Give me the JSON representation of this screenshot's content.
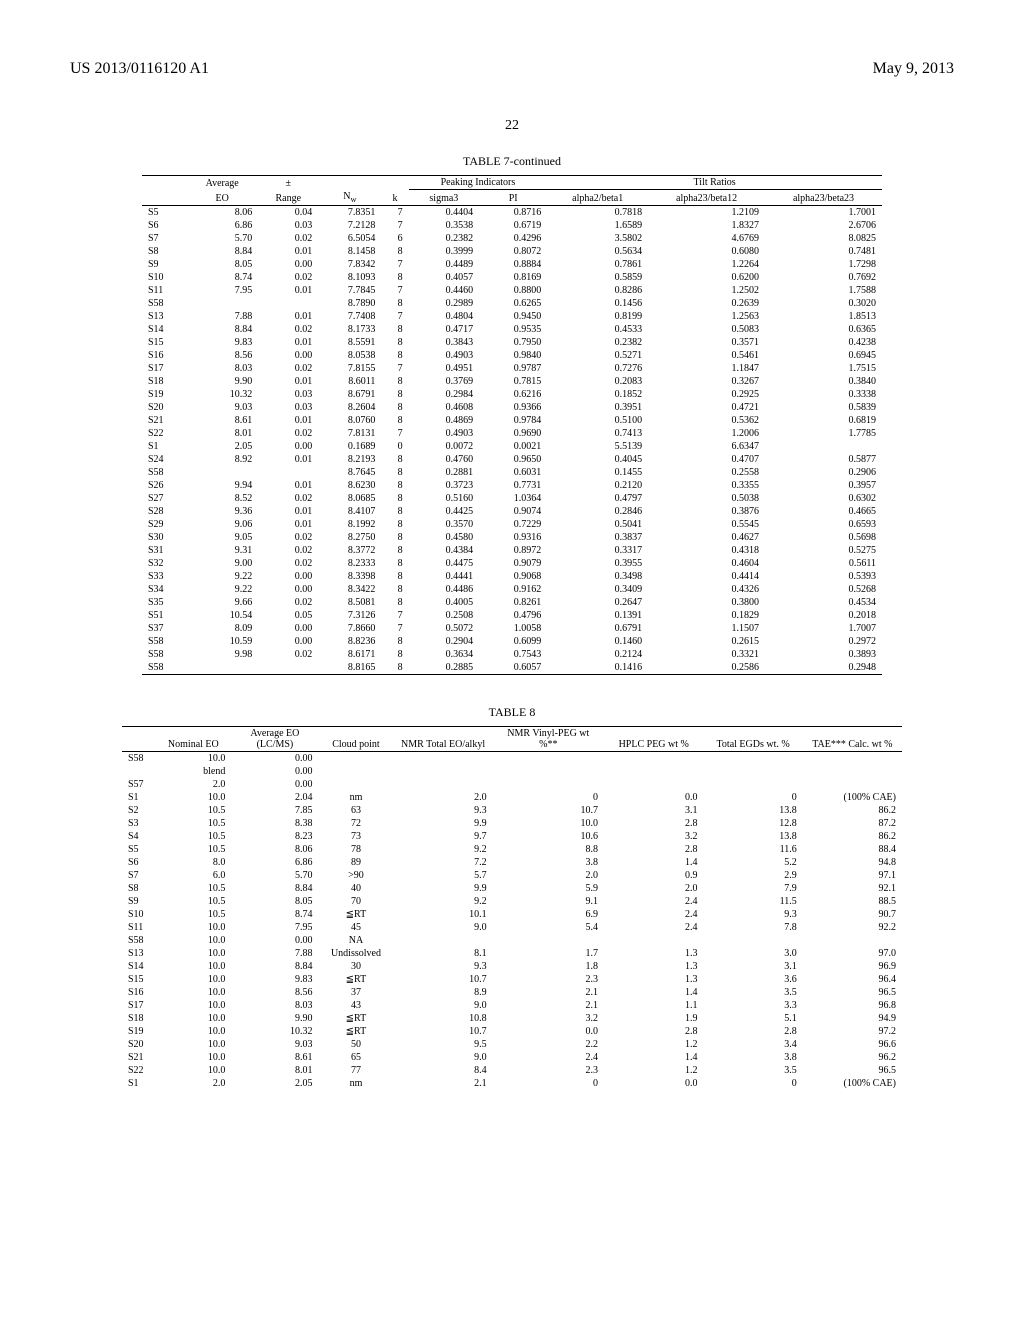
{
  "header": {
    "docnum": "US 2013/0116120 A1",
    "date": "May 9, 2013",
    "page": "22"
  },
  "table7": {
    "title": "TABLE 7-continued",
    "group_headers": {
      "peaking": "Peaking Indicators",
      "tilt": "Tilt Ratios"
    },
    "columns": {
      "avg_eo_top": "Average",
      "avg_eo": "EO",
      "pm": "±",
      "range": "Range",
      "nw": "N",
      "nw_sub": "w",
      "k": "k",
      "sigma3": "sigma3",
      "pi": "PI",
      "a2b1": "alpha2/beta1",
      "a23b12": "alpha23/beta12",
      "a23b23": "alpha23/beta23"
    },
    "rows": [
      {
        "id": "S5",
        "eo": "8.06",
        "range": "0.04",
        "nw": "7.8351",
        "k": "7",
        "sigma3": "0.4404",
        "pi": "0.8716",
        "a2b1": "0.7818",
        "a23b12": "1.2109",
        "a23b23": "1.7001"
      },
      {
        "id": "S6",
        "eo": "6.86",
        "range": "0.03",
        "nw": "7.2128",
        "k": "7",
        "sigma3": "0.3538",
        "pi": "0.6719",
        "a2b1": "1.6589",
        "a23b12": "1.8327",
        "a23b23": "2.6706"
      },
      {
        "id": "S7",
        "eo": "5.70",
        "range": "0.02",
        "nw": "6.5054",
        "k": "6",
        "sigma3": "0.2382",
        "pi": "0.4296",
        "a2b1": "3.5802",
        "a23b12": "4.6769",
        "a23b23": "8.0825"
      },
      {
        "id": "S8",
        "eo": "8.84",
        "range": "0.01",
        "nw": "8.1458",
        "k": "8",
        "sigma3": "0.3999",
        "pi": "0.8072",
        "a2b1": "0.5634",
        "a23b12": "0.6080",
        "a23b23": "0.7481"
      },
      {
        "id": "S9",
        "eo": "8.05",
        "range": "0.00",
        "nw": "7.8342",
        "k": "7",
        "sigma3": "0.4489",
        "pi": "0.8884",
        "a2b1": "0.7861",
        "a23b12": "1.2264",
        "a23b23": "1.7298"
      },
      {
        "id": "S10",
        "eo": "8.74",
        "range": "0.02",
        "nw": "8.1093",
        "k": "8",
        "sigma3": "0.4057",
        "pi": "0.8169",
        "a2b1": "0.5859",
        "a23b12": "0.6200",
        "a23b23": "0.7692"
      },
      {
        "id": "S11",
        "eo": "7.95",
        "range": "0.01",
        "nw": "7.7845",
        "k": "7",
        "sigma3": "0.4460",
        "pi": "0.8800",
        "a2b1": "0.8286",
        "a23b12": "1.2502",
        "a23b23": "1.7588"
      },
      {
        "id": "S58",
        "eo": "",
        "range": "",
        "nw": "8.7890",
        "k": "8",
        "sigma3": "0.2989",
        "pi": "0.6265",
        "a2b1": "0.1456",
        "a23b12": "0.2639",
        "a23b23": "0.3020"
      },
      {
        "id": "S13",
        "eo": "7.88",
        "range": "0.01",
        "nw": "7.7408",
        "k": "7",
        "sigma3": "0.4804",
        "pi": "0.9450",
        "a2b1": "0.8199",
        "a23b12": "1.2563",
        "a23b23": "1.8513"
      },
      {
        "id": "S14",
        "eo": "8.84",
        "range": "0.02",
        "nw": "8.1733",
        "k": "8",
        "sigma3": "0.4717",
        "pi": "0.9535",
        "a2b1": "0.4533",
        "a23b12": "0.5083",
        "a23b23": "0.6365"
      },
      {
        "id": "S15",
        "eo": "9.83",
        "range": "0.01",
        "nw": "8.5591",
        "k": "8",
        "sigma3": "0.3843",
        "pi": "0.7950",
        "a2b1": "0.2382",
        "a23b12": "0.3571",
        "a23b23": "0.4238"
      },
      {
        "id": "S16",
        "eo": "8.56",
        "range": "0.00",
        "nw": "8.0538",
        "k": "8",
        "sigma3": "0.4903",
        "pi": "0.9840",
        "a2b1": "0.5271",
        "a23b12": "0.5461",
        "a23b23": "0.6945"
      },
      {
        "id": "S17",
        "eo": "8.03",
        "range": "0.02",
        "nw": "7.8155",
        "k": "7",
        "sigma3": "0.4951",
        "pi": "0.9787",
        "a2b1": "0.7276",
        "a23b12": "1.1847",
        "a23b23": "1.7515"
      },
      {
        "id": "S18",
        "eo": "9.90",
        "range": "0.01",
        "nw": "8.6011",
        "k": "8",
        "sigma3": "0.3769",
        "pi": "0.7815",
        "a2b1": "0.2083",
        "a23b12": "0.3267",
        "a23b23": "0.3840"
      },
      {
        "id": "S19",
        "eo": "10.32",
        "range": "0.03",
        "nw": "8.6791",
        "k": "8",
        "sigma3": "0.2984",
        "pi": "0.6216",
        "a2b1": "0.1852",
        "a23b12": "0.2925",
        "a23b23": "0.3338"
      },
      {
        "id": "S20",
        "eo": "9.03",
        "range": "0.03",
        "nw": "8.2604",
        "k": "8",
        "sigma3": "0.4608",
        "pi": "0.9366",
        "a2b1": "0.3951",
        "a23b12": "0.4721",
        "a23b23": "0.5839"
      },
      {
        "id": "S21",
        "eo": "8.61",
        "range": "0.01",
        "nw": "8.0760",
        "k": "8",
        "sigma3": "0.4869",
        "pi": "0.9784",
        "a2b1": "0.5100",
        "a23b12": "0.5362",
        "a23b23": "0.6819"
      },
      {
        "id": "S22",
        "eo": "8.01",
        "range": "0.02",
        "nw": "7.8131",
        "k": "7",
        "sigma3": "0.4903",
        "pi": "0.9690",
        "a2b1": "0.7413",
        "a23b12": "1.2006",
        "a23b23": "1.7785"
      },
      {
        "id": "S1",
        "eo": "2.05",
        "range": "0.00",
        "nw": "0.1689",
        "k": "0",
        "sigma3": "0.0072",
        "pi": "0.0021",
        "a2b1": "5.5139",
        "a23b12": "6.6347",
        "a23b23": ""
      },
      {
        "id": "S24",
        "eo": "8.92",
        "range": "0.01",
        "nw": "8.2193",
        "k": "8",
        "sigma3": "0.4760",
        "pi": "0.9650",
        "a2b1": "0.4045",
        "a23b12": "0.4707",
        "a23b23": "0.5877"
      },
      {
        "id": "S58",
        "eo": "",
        "range": "",
        "nw": "8.7645",
        "k": "8",
        "sigma3": "0.2881",
        "pi": "0.6031",
        "a2b1": "0.1455",
        "a23b12": "0.2558",
        "a23b23": "0.2906"
      },
      {
        "id": "S26",
        "eo": "9.94",
        "range": "0.01",
        "nw": "8.6230",
        "k": "8",
        "sigma3": "0.3723",
        "pi": "0.7731",
        "a2b1": "0.2120",
        "a23b12": "0.3355",
        "a23b23": "0.3957"
      },
      {
        "id": "S27",
        "eo": "8.52",
        "range": "0.02",
        "nw": "8.0685",
        "k": "8",
        "sigma3": "0.5160",
        "pi": "1.0364",
        "a2b1": "0.4797",
        "a23b12": "0.5038",
        "a23b23": "0.6302"
      },
      {
        "id": "S28",
        "eo": "9.36",
        "range": "0.01",
        "nw": "8.4107",
        "k": "8",
        "sigma3": "0.4425",
        "pi": "0.9074",
        "a2b1": "0.2846",
        "a23b12": "0.3876",
        "a23b23": "0.4665"
      },
      {
        "id": "S29",
        "eo": "9.06",
        "range": "0.01",
        "nw": "8.1992",
        "k": "8",
        "sigma3": "0.3570",
        "pi": "0.7229",
        "a2b1": "0.5041",
        "a23b12": "0.5545",
        "a23b23": "0.6593"
      },
      {
        "id": "S30",
        "eo": "9.05",
        "range": "0.02",
        "nw": "8.2750",
        "k": "8",
        "sigma3": "0.4580",
        "pi": "0.9316",
        "a2b1": "0.3837",
        "a23b12": "0.4627",
        "a23b23": "0.5698"
      },
      {
        "id": "S31",
        "eo": "9.31",
        "range": "0.02",
        "nw": "8.3772",
        "k": "8",
        "sigma3": "0.4384",
        "pi": "0.8972",
        "a2b1": "0.3317",
        "a23b12": "0.4318",
        "a23b23": "0.5275"
      },
      {
        "id": "S32",
        "eo": "9.00",
        "range": "0.02",
        "nw": "8.2333",
        "k": "8",
        "sigma3": "0.4475",
        "pi": "0.9079",
        "a2b1": "0.3955",
        "a23b12": "0.4604",
        "a23b23": "0.5611"
      },
      {
        "id": "S33",
        "eo": "9.22",
        "range": "0.00",
        "nw": "8.3398",
        "k": "8",
        "sigma3": "0.4441",
        "pi": "0.9068",
        "a2b1": "0.3498",
        "a23b12": "0.4414",
        "a23b23": "0.5393"
      },
      {
        "id": "S34",
        "eo": "9.22",
        "range": "0.00",
        "nw": "8.3422",
        "k": "8",
        "sigma3": "0.4486",
        "pi": "0.9162",
        "a2b1": "0.3409",
        "a23b12": "0.4326",
        "a23b23": "0.5268"
      },
      {
        "id": "S35",
        "eo": "9.66",
        "range": "0.02",
        "nw": "8.5081",
        "k": "8",
        "sigma3": "0.4005",
        "pi": "0.8261",
        "a2b1": "0.2647",
        "a23b12": "0.3800",
        "a23b23": "0.4534"
      },
      {
        "id": "S51",
        "eo": "10.54",
        "range": "0.05",
        "nw": "7.3126",
        "k": "7",
        "sigma3": "0.2508",
        "pi": "0.4796",
        "a2b1": "0.1391",
        "a23b12": "0.1829",
        "a23b23": "0.2018"
      },
      {
        "id": "S37",
        "eo": "8.09",
        "range": "0.00",
        "nw": "7.8660",
        "k": "7",
        "sigma3": "0.5072",
        "pi": "1.0058",
        "a2b1": "0.6791",
        "a23b12": "1.1507",
        "a23b23": "1.7007"
      },
      {
        "id": "S58",
        "eo": "10.59",
        "range": "0.00",
        "nw": "8.8236",
        "k": "8",
        "sigma3": "0.2904",
        "pi": "0.6099",
        "a2b1": "0.1460",
        "a23b12": "0.2615",
        "a23b23": "0.2972"
      },
      {
        "id": "S58",
        "eo": "9.98",
        "range": "0.02",
        "nw": "8.6171",
        "k": "8",
        "sigma3": "0.3634",
        "pi": "0.7543",
        "a2b1": "0.2124",
        "a23b12": "0.3321",
        "a23b23": "0.3893"
      },
      {
        "id": "S58",
        "eo": "",
        "range": "",
        "nw": "8.8165",
        "k": "8",
        "sigma3": "0.2885",
        "pi": "0.6057",
        "a2b1": "0.1416",
        "a23b12": "0.2586",
        "a23b23": "0.2948"
      }
    ]
  },
  "table8": {
    "title": "TABLE 8",
    "columns": {
      "nominal": "Nominal EO",
      "avg_eo": "Average EO (LC/MS)",
      "cloud": "Cloud point",
      "nmr_total": "NMR Total EO/alkyl",
      "nmr_vinyl": "NMR Vinyl-PEG wt %**",
      "hplc": "HPLC PEG wt %",
      "total_egds": "Total EGDs wt. %",
      "tae": "TAE*** Calc. wt %"
    },
    "rows": [
      {
        "id": "S58",
        "nominal": "10.0",
        "avg": "0.00",
        "cloud": "",
        "nmr": "",
        "vinyl": "",
        "hplc": "",
        "egds": "",
        "tae": ""
      },
      {
        "id": "",
        "nominal": "blend",
        "avg": "0.00",
        "cloud": "",
        "nmr": "",
        "vinyl": "",
        "hplc": "",
        "egds": "",
        "tae": ""
      },
      {
        "id": "S57",
        "nominal": "2.0",
        "avg": "0.00",
        "cloud": "",
        "nmr": "",
        "vinyl": "",
        "hplc": "",
        "egds": "",
        "tae": ""
      },
      {
        "id": "S1",
        "nominal": "10.0",
        "avg": "2.04",
        "cloud": "nm",
        "nmr": "2.0",
        "vinyl": "0",
        "hplc": "0.0",
        "egds": "0",
        "tae": "(100% CAE)"
      },
      {
        "id": "S2",
        "nominal": "10.5",
        "avg": "7.85",
        "cloud": "63",
        "nmr": "9.3",
        "vinyl": "10.7",
        "hplc": "3.1",
        "egds": "13.8",
        "tae": "86.2"
      },
      {
        "id": "S3",
        "nominal": "10.5",
        "avg": "8.38",
        "cloud": "72",
        "nmr": "9.9",
        "vinyl": "10.0",
        "hplc": "2.8",
        "egds": "12.8",
        "tae": "87.2"
      },
      {
        "id": "S4",
        "nominal": "10.5",
        "avg": "8.23",
        "cloud": "73",
        "nmr": "9.7",
        "vinyl": "10.6",
        "hplc": "3.2",
        "egds": "13.8",
        "tae": "86.2"
      },
      {
        "id": "S5",
        "nominal": "10.5",
        "avg": "8.06",
        "cloud": "78",
        "nmr": "9.2",
        "vinyl": "8.8",
        "hplc": "2.8",
        "egds": "11.6",
        "tae": "88.4"
      },
      {
        "id": "S6",
        "nominal": "8.0",
        "avg": "6.86",
        "cloud": "89",
        "nmr": "7.2",
        "vinyl": "3.8",
        "hplc": "1.4",
        "egds": "5.2",
        "tae": "94.8"
      },
      {
        "id": "S7",
        "nominal": "6.0",
        "avg": "5.70",
        "cloud": ">90",
        "nmr": "5.7",
        "vinyl": "2.0",
        "hplc": "0.9",
        "egds": "2.9",
        "tae": "97.1"
      },
      {
        "id": "S8",
        "nominal": "10.5",
        "avg": "8.84",
        "cloud": "40",
        "nmr": "9.9",
        "vinyl": "5.9",
        "hplc": "2.0",
        "egds": "7.9",
        "tae": "92.1"
      },
      {
        "id": "S9",
        "nominal": "10.5",
        "avg": "8.05",
        "cloud": "70",
        "nmr": "9.2",
        "vinyl": "9.1",
        "hplc": "2.4",
        "egds": "11.5",
        "tae": "88.5"
      },
      {
        "id": "S10",
        "nominal": "10.5",
        "avg": "8.74",
        "cloud": "≦RT",
        "nmr": "10.1",
        "vinyl": "6.9",
        "hplc": "2.4",
        "egds": "9.3",
        "tae": "90.7"
      },
      {
        "id": "S11",
        "nominal": "10.0",
        "avg": "7.95",
        "cloud": "45",
        "nmr": "9.0",
        "vinyl": "5.4",
        "hplc": "2.4",
        "egds": "7.8",
        "tae": "92.2"
      },
      {
        "id": "S58",
        "nominal": "10.0",
        "avg": "0.00",
        "cloud": "NA",
        "nmr": "",
        "vinyl": "",
        "hplc": "",
        "egds": "",
        "tae": ""
      },
      {
        "id": "S13",
        "nominal": "10.0",
        "avg": "7.88",
        "cloud": "Undissolved",
        "nmr": "8.1",
        "vinyl": "1.7",
        "hplc": "1.3",
        "egds": "3.0",
        "tae": "97.0"
      },
      {
        "id": "S14",
        "nominal": "10.0",
        "avg": "8.84",
        "cloud": "30",
        "nmr": "9.3",
        "vinyl": "1.8",
        "hplc": "1.3",
        "egds": "3.1",
        "tae": "96.9"
      },
      {
        "id": "S15",
        "nominal": "10.0",
        "avg": "9.83",
        "cloud": "≦RT",
        "nmr": "10.7",
        "vinyl": "2.3",
        "hplc": "1.3",
        "egds": "3.6",
        "tae": "96.4"
      },
      {
        "id": "S16",
        "nominal": "10.0",
        "avg": "8.56",
        "cloud": "37",
        "nmr": "8.9",
        "vinyl": "2.1",
        "hplc": "1.4",
        "egds": "3.5",
        "tae": "96.5"
      },
      {
        "id": "S17",
        "nominal": "10.0",
        "avg": "8.03",
        "cloud": "43",
        "nmr": "9.0",
        "vinyl": "2.1",
        "hplc": "1.1",
        "egds": "3.3",
        "tae": "96.8"
      },
      {
        "id": "S18",
        "nominal": "10.0",
        "avg": "9.90",
        "cloud": "≦RT",
        "nmr": "10.8",
        "vinyl": "3.2",
        "hplc": "1.9",
        "egds": "5.1",
        "tae": "94.9"
      },
      {
        "id": "S19",
        "nominal": "10.0",
        "avg": "10.32",
        "cloud": "≦RT",
        "nmr": "10.7",
        "vinyl": "0.0",
        "hplc": "2.8",
        "egds": "2.8",
        "tae": "97.2"
      },
      {
        "id": "S20",
        "nominal": "10.0",
        "avg": "9.03",
        "cloud": "50",
        "nmr": "9.5",
        "vinyl": "2.2",
        "hplc": "1.2",
        "egds": "3.4",
        "tae": "96.6"
      },
      {
        "id": "S21",
        "nominal": "10.0",
        "avg": "8.61",
        "cloud": "65",
        "nmr": "9.0",
        "vinyl": "2.4",
        "hplc": "1.4",
        "egds": "3.8",
        "tae": "96.2"
      },
      {
        "id": "S22",
        "nominal": "10.0",
        "avg": "8.01",
        "cloud": "77",
        "nmr": "8.4",
        "vinyl": "2.3",
        "hplc": "1.2",
        "egds": "3.5",
        "tae": "96.5"
      },
      {
        "id": "S1",
        "nominal": "2.0",
        "avg": "2.05",
        "cloud": "nm",
        "nmr": "2.1",
        "vinyl": "0",
        "hplc": "0.0",
        "egds": "0",
        "tae": "(100% CAE)"
      }
    ]
  }
}
